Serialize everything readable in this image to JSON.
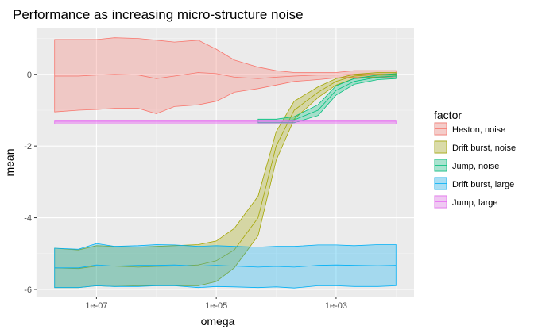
{
  "chart_data": {
    "type": "area",
    "title": "Performance as increasing micro-structure noise",
    "xlabel": "omega",
    "ylabel": "mean",
    "xscale": "log10",
    "xlim": [
      1e-08,
      0.02
    ],
    "ylim": [
      -6.2,
      1.3
    ],
    "xticks": [
      {
        "value": 1e-07,
        "label": "1e-07"
      },
      {
        "value": 1e-05,
        "label": "1e-05"
      },
      {
        "value": 0.001,
        "label": "1e-03"
      }
    ],
    "yticks": [
      {
        "value": 0,
        "label": "0"
      },
      {
        "value": -2,
        "label": "-2"
      },
      {
        "value": -4,
        "label": "-4"
      },
      {
        "value": -6,
        "label": "-6"
      }
    ],
    "grid": true,
    "legend_title": "factor",
    "legend_position": "right",
    "x": [
      2e-08,
      5e-08,
      1e-07,
      2e-07,
      5e-07,
      1e-06,
      2e-06,
      5e-06,
      1e-05,
      2e-05,
      5e-05,
      0.0001,
      0.0002,
      0.0005,
      0.001,
      0.002,
      0.005,
      0.01
    ],
    "series": [
      {
        "name": "Heston, noise",
        "color": "#F8766D",
        "mean": [
          -0.05,
          -0.05,
          -0.02,
          0.0,
          -0.02,
          -0.12,
          -0.05,
          0.05,
          0.02,
          -0.08,
          -0.12,
          -0.08,
          -0.05,
          -0.02,
          -0.02,
          0.0,
          0.0,
          0.0
        ],
        "upper": [
          0.97,
          0.97,
          0.97,
          1.02,
          1.0,
          0.95,
          0.9,
          0.95,
          0.7,
          0.4,
          0.2,
          0.1,
          0.05,
          0.05,
          0.05,
          0.1,
          0.1,
          0.1
        ],
        "lower": [
          -1.05,
          -1.0,
          -0.98,
          -0.95,
          -0.95,
          -1.1,
          -0.9,
          -0.85,
          -0.75,
          -0.5,
          -0.4,
          -0.3,
          -0.2,
          -0.15,
          -0.1,
          -0.08,
          -0.08,
          -0.1
        ]
      },
      {
        "name": "Drift burst, noise",
        "color": "#A3A500",
        "mean": [
          -5.4,
          -5.42,
          -5.35,
          -5.35,
          -5.38,
          -5.36,
          -5.35,
          -5.32,
          -5.2,
          -4.9,
          -4.0,
          -2.0,
          -1.0,
          -0.5,
          -0.2,
          -0.05,
          0.0,
          0.0
        ],
        "upper": [
          -4.85,
          -4.9,
          -4.78,
          -4.8,
          -4.82,
          -4.8,
          -4.78,
          -4.75,
          -4.65,
          -4.3,
          -3.4,
          -1.6,
          -0.75,
          -0.35,
          -0.12,
          0.0,
          0.05,
          0.05
        ],
        "lower": [
          -5.95,
          -5.95,
          -5.9,
          -5.92,
          -5.9,
          -5.9,
          -5.9,
          -5.9,
          -5.78,
          -5.4,
          -4.5,
          -2.4,
          -1.25,
          -0.65,
          -0.3,
          -0.12,
          -0.08,
          -0.05
        ]
      },
      {
        "name": "Jump, noise",
        "color": "#00BF7D",
        "mean": [
          null,
          null,
          null,
          null,
          null,
          null,
          null,
          null,
          null,
          null,
          -1.3,
          -1.3,
          -1.27,
          -1.0,
          -0.45,
          -0.2,
          -0.08,
          -0.05
        ],
        "upper": [
          null,
          null,
          null,
          null,
          null,
          null,
          null,
          null,
          null,
          null,
          -1.25,
          -1.25,
          -1.18,
          -0.85,
          -0.32,
          -0.12,
          -0.02,
          0.02
        ],
        "lower": [
          null,
          null,
          null,
          null,
          null,
          null,
          null,
          null,
          null,
          null,
          -1.35,
          -1.35,
          -1.35,
          -1.15,
          -0.58,
          -0.28,
          -0.15,
          -0.12
        ]
      },
      {
        "name": "Drift burst, large",
        "color": "#00B0F6",
        "mean": [
          -5.4,
          -5.4,
          -5.32,
          -5.35,
          -5.33,
          -5.33,
          -5.32,
          -5.35,
          -5.33,
          -5.35,
          -5.38,
          -5.36,
          -5.38,
          -5.33,
          -5.32,
          -5.33,
          -5.34,
          -5.33
        ],
        "upper": [
          -4.85,
          -4.88,
          -4.72,
          -4.8,
          -4.78,
          -4.75,
          -4.76,
          -4.8,
          -4.78,
          -4.8,
          -4.82,
          -4.8,
          -4.8,
          -4.76,
          -4.76,
          -4.78,
          -4.75,
          -4.75
        ],
        "lower": [
          -5.95,
          -5.95,
          -5.9,
          -5.92,
          -5.92,
          -5.9,
          -5.9,
          -5.95,
          -5.92,
          -5.93,
          -5.95,
          -5.93,
          -5.96,
          -5.9,
          -5.9,
          -5.92,
          -5.92,
          -5.9
        ]
      },
      {
        "name": "Jump, large",
        "color": "#E76BF3",
        "mean": [
          -1.33,
          -1.33,
          -1.33,
          -1.33,
          -1.33,
          -1.33,
          -1.33,
          -1.33,
          -1.33,
          -1.33,
          -1.33,
          -1.33,
          -1.33,
          -1.33,
          -1.33,
          -1.33,
          -1.33,
          -1.33
        ],
        "upper": [
          -1.28,
          -1.28,
          -1.28,
          -1.28,
          -1.28,
          -1.28,
          -1.28,
          -1.28,
          -1.28,
          -1.28,
          -1.28,
          -1.28,
          -1.28,
          -1.28,
          -1.28,
          -1.28,
          -1.28,
          -1.28
        ],
        "lower": [
          -1.38,
          -1.38,
          -1.38,
          -1.38,
          -1.38,
          -1.38,
          -1.38,
          -1.38,
          -1.38,
          -1.38,
          -1.38,
          -1.38,
          -1.38,
          -1.38,
          -1.38,
          -1.38,
          -1.38,
          -1.38
        ]
      }
    ]
  }
}
